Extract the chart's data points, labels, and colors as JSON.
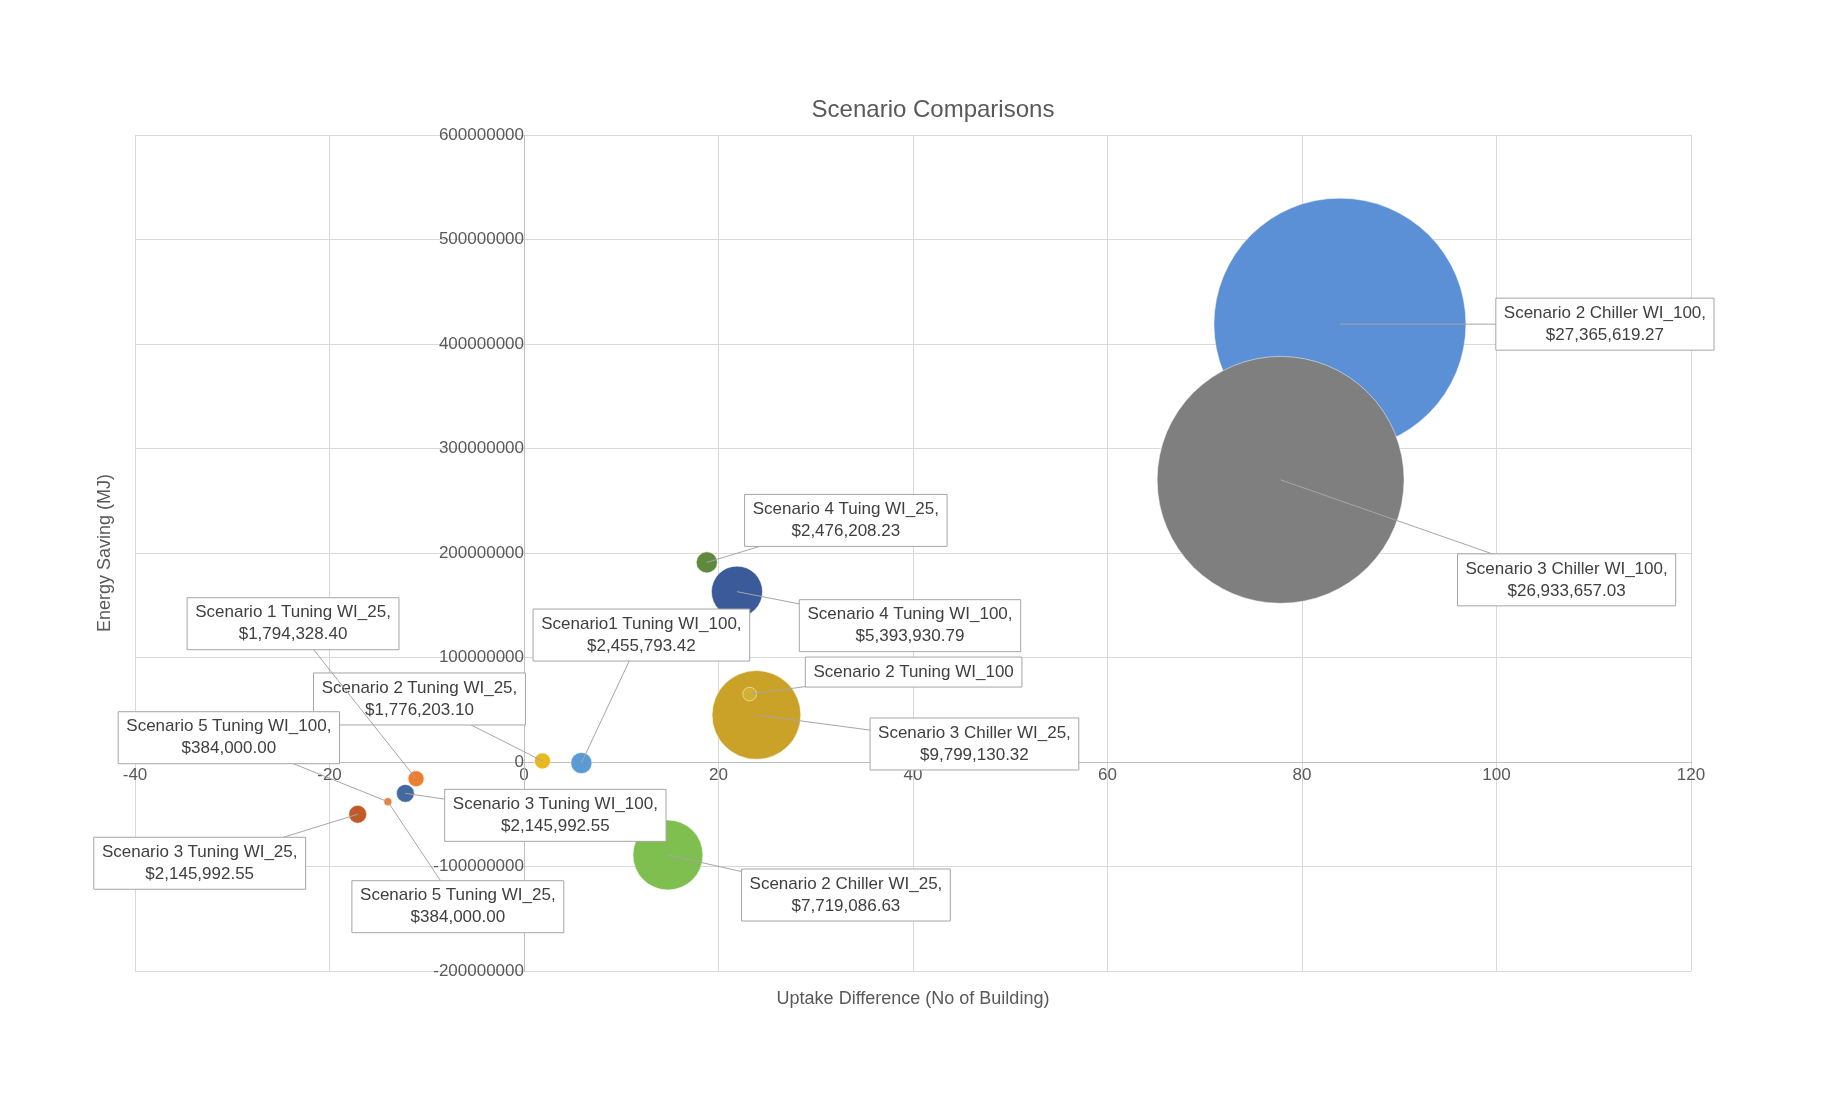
{
  "chart_data": {
    "type": "bubble",
    "title": "Scenario Comparisons",
    "xlabel": "Uptake Difference (No of Building)",
    "ylabel": "Energy Saving (MJ)",
    "x": [
      83.9,
      77.8,
      18.8,
      21.9,
      23.9,
      23.2,
      5.9,
      1.9,
      -11.1,
      -12.2,
      -17.1,
      14.8,
      null,
      -14
    ],
    "values": [
      419000000,
      270000000,
      191000000,
      163000000,
      45000000,
      65000000,
      -1000000,
      1000000,
      -16000000,
      -30000000,
      -50000000,
      -89000000,
      null,
      -38000000
    ],
    "sizes": [
      1,
      0.96,
      0.007,
      0.041,
      0.124,
      0.003,
      0.007,
      0.004,
      0.004,
      0.005,
      0.005,
      0.077,
      null,
      0.001
    ],
    "colors": [
      "#5b8fd6",
      "#7f7f7f",
      "#5f8a3e",
      "#3a5a9a",
      "#c9a227",
      "#d4b030",
      "#5b9bd5",
      "#e8b820",
      "#ed7d31",
      "#44699f",
      "#c05a2a",
      "#7fbf50",
      "#5b9bd5",
      "#ed7d31"
    ],
    "xlim": [
      -40,
      120
    ],
    "xticks": [
      -40,
      -20,
      0,
      20,
      40,
      60,
      80,
      100,
      120
    ],
    "ylim": [
      -200000000,
      600000000
    ],
    "yticks": [
      -200000000,
      -100000000,
      0,
      100000000,
      200000000,
      300000000,
      400000000,
      500000000,
      600000000
    ],
    "grid": true,
    "legend": false,
    "annotations": [
      {
        "text": "Scenario 2 Chiller WI_100,\n$27,365,619.27",
        "x": 83.9,
        "y": 419000000
      },
      {
        "text": "Scenario 3 Chiller WI_100,\n$26,933,657.03",
        "x": 77.8,
        "y": 270000000
      },
      {
        "text": "Scenario 4 Tuing WI_25,\n$2,476,208.23",
        "x": 18.8,
        "y": 191000000
      },
      {
        "text": "Scenario 4 Tuning WI_100,\n$5,393,930.79",
        "x": 21.9,
        "y": 163000000
      },
      {
        "text": "Scenario 3 Chiller WI_25,\n$9,799,130.32",
        "x": 23.9,
        "y": 45000000
      },
      {
        "text": "Scenario 2 Tuning WI_100",
        "x": 23.2,
        "y": 65000000
      },
      {
        "text": "Scenario1 Tuning WI_100,\n$2,455,793.42",
        "x": 5.9,
        "y": -1000000
      },
      {
        "text": "Scenario 2 Tuning WI_25,\n$1,776,203.10",
        "x": 1.9,
        "y": 1000000
      },
      {
        "text": "Scenario 1 Tuning WI_25,\n$1,794,328.40",
        "x": -11.1,
        "y": -16000000
      },
      {
        "text": "Scenario 3 Tuning WI_100,\n$2,145,992.55",
        "x": -12.2,
        "y": -30000000
      },
      {
        "text": "Scenario 3 Tuning WI_25,\n$2,145,992.55",
        "x": -17.1,
        "y": -50000000
      },
      {
        "text": "Scenario 2 Chiller WI_25,\n$7,719,086.63",
        "x": 14.8,
        "y": -89000000
      },
      {
        "text": "Scenario 5 Tuning WI_100,\n$384,000.00",
        "x": -14,
        "y": -38000000
      },
      {
        "text": "Scenario 5 Tuning WI_25,\n$384,000.00",
        "x": -14,
        "y": -38000000
      }
    ]
  }
}
